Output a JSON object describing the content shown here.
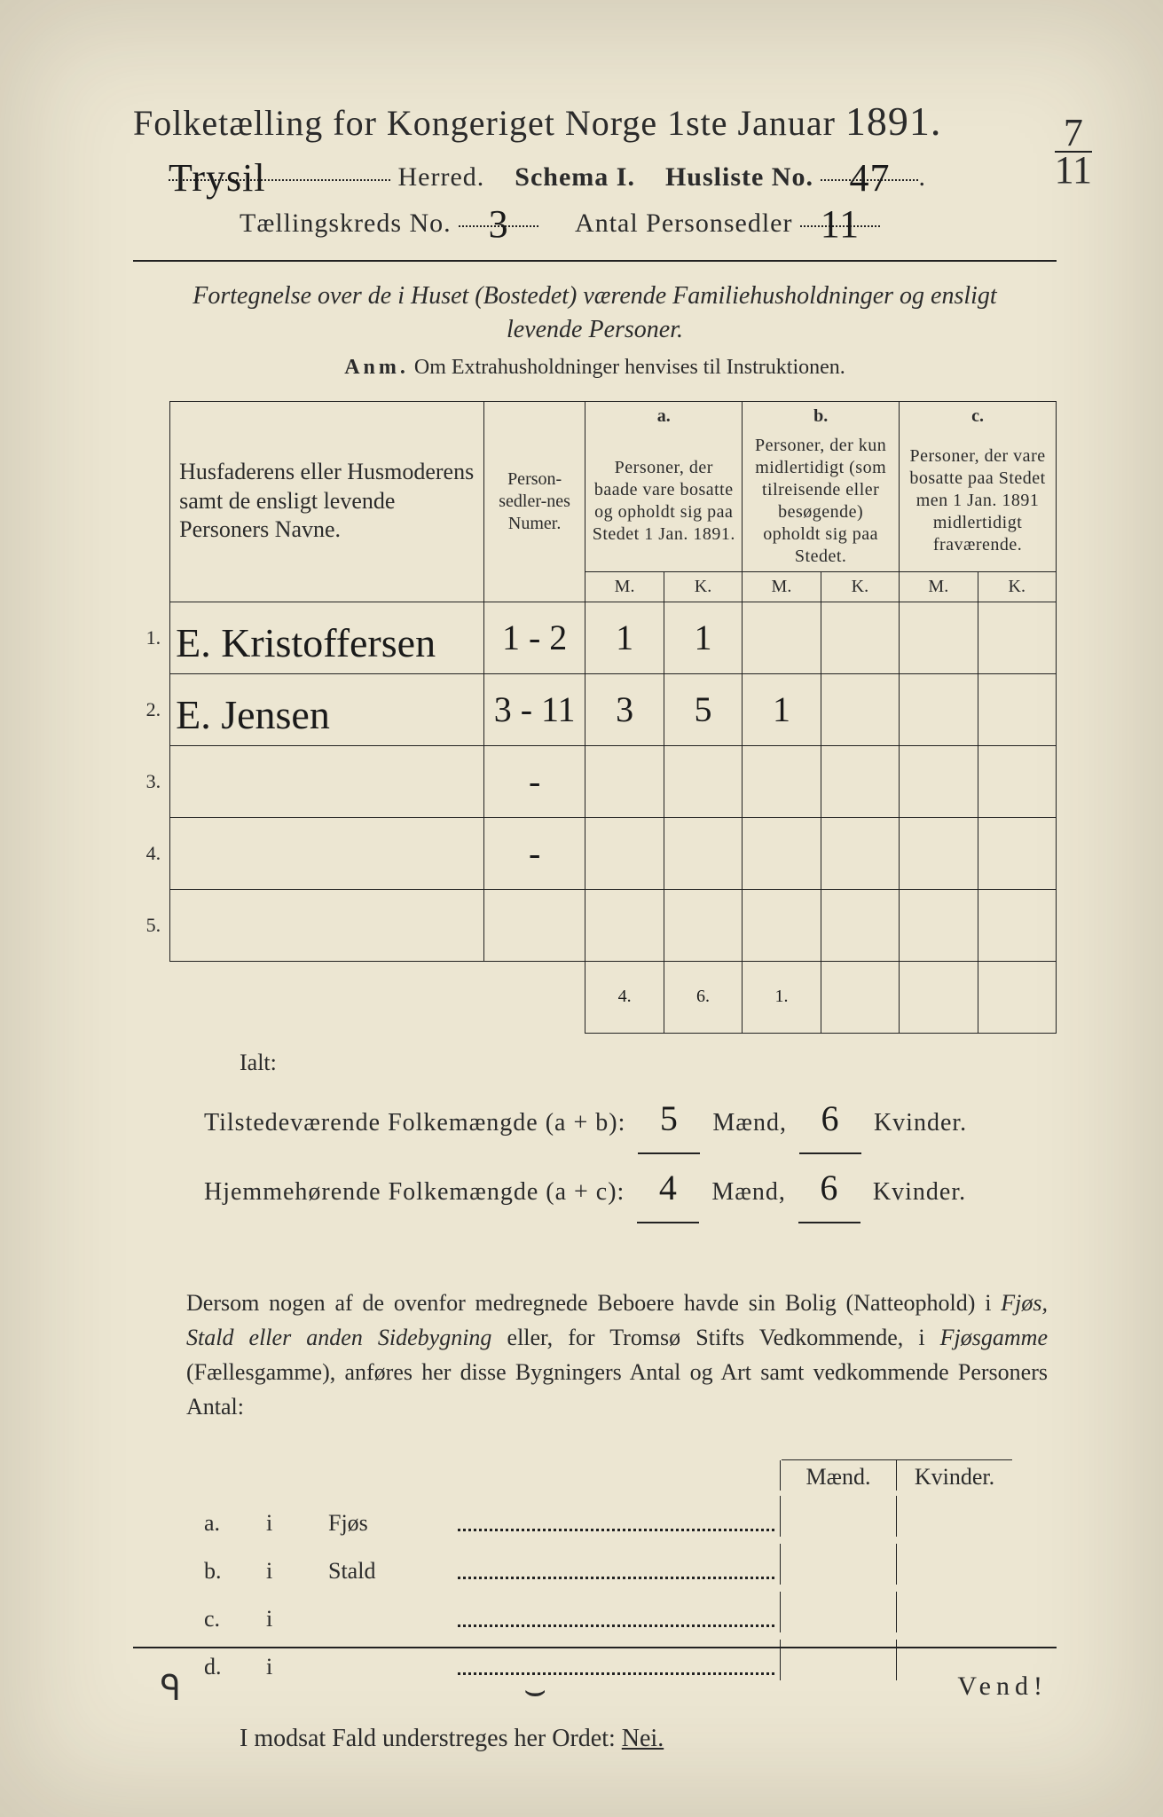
{
  "colors": {
    "paper": "#ece6d2",
    "ink": "#2b2b2b",
    "surround": "#5a5450"
  },
  "header": {
    "title_pre": "Folketælling for Kongeriget Norge 1ste Januar ",
    "year": "1891.",
    "corner_numer": "7",
    "corner_denom": "11",
    "herred_hand": "Trysil",
    "herred_label": " Herred.",
    "schema_label": "Schema I.",
    "husliste_label": "Husliste No.",
    "husliste_no": "47",
    "kreds_label": "Tællingskreds No.",
    "kreds_no": "3",
    "antal_label": "Antal Personsedler",
    "antal_no": "11"
  },
  "intro": {
    "text": "Fortegnelse over de i Huset (Bostedet) værende Familiehusholdninger og ensligt levende Personer.",
    "anm_label": "Anm.",
    "anm_text": " Om Extrahusholdninger henvises til Instruktionen."
  },
  "table": {
    "head_name": "Husfaderens eller Husmoderens samt de ensligt levende Personers Navne.",
    "head_numer": "Person-sedler-nes Numer.",
    "head_a_key": "a.",
    "head_a": "Personer, der baade vare bosatte og opholdt sig paa Stedet 1 Jan. 1891.",
    "head_b_key": "b.",
    "head_b": "Personer, der kun midlertidigt (som tilreisende eller besøgende) opholdt sig paa Stedet.",
    "head_c_key": "c.",
    "head_c": "Personer, der vare bosatte paa Stedet men 1 Jan. 1891 midlertidigt fraværende.",
    "mk_m": "M.",
    "mk_k": "K.",
    "rows": [
      {
        "n": "1.",
        "name": "E. Kristoffersen",
        "numer": "1 - 2",
        "a_m": "1",
        "a_k": "1",
        "b_m": "",
        "b_k": "",
        "c_m": "",
        "c_k": ""
      },
      {
        "n": "2.",
        "name": "E. Jensen",
        "numer": "3 - 11",
        "a_m": "3",
        "a_k": "5",
        "b_m": "1",
        "b_k": "",
        "c_m": "",
        "c_k": ""
      },
      {
        "n": "3.",
        "name": "",
        "numer": "-",
        "a_m": "",
        "a_k": "",
        "b_m": "",
        "b_k": "",
        "c_m": "",
        "c_k": ""
      },
      {
        "n": "4.",
        "name": "",
        "numer": "-",
        "a_m": "",
        "a_k": "",
        "b_m": "",
        "b_k": "",
        "c_m": "",
        "c_k": ""
      },
      {
        "n": "5.",
        "name": "",
        "numer": "",
        "a_m": "",
        "a_k": "",
        "b_m": "",
        "b_k": "",
        "c_m": "",
        "c_k": ""
      }
    ],
    "sums": {
      "a_m": "4.",
      "a_k": "6.",
      "b_m": "1."
    }
  },
  "totals": {
    "ialt": "Ialt:",
    "line1_label": "Tilstedeværende Folkemængde (a + b):",
    "line1_m": "5",
    "line1_k": "6",
    "line2_label": "Hjemmehørende Folkemængde (a + c):",
    "line2_m": "4",
    "line2_k": "6",
    "maend": " Mænd, ",
    "kvinder": " Kvinder."
  },
  "para": {
    "text1": "Dersom nogen af de ovenfor medregnede Beboere havde sin Bolig (Natteophold) i ",
    "it1": "Fjøs, Stald eller anden Sidebygning",
    "text2": " eller, for Tromsø Stifts Vedkommende, i ",
    "it2": "Fjøsgamme",
    "text3": " (Fællesgamme), anføres her disse Bygningers Antal og Art samt vedkommende Personers Antal:"
  },
  "mk": {
    "maend": "Mænd.",
    "kvinder": "Kvinder.",
    "rows": [
      {
        "k": "a.",
        "i": "i",
        "label": "Fjøs"
      },
      {
        "k": "b.",
        "i": "i",
        "label": "Stald"
      },
      {
        "k": "c.",
        "i": "i",
        "label": ""
      },
      {
        "k": "d.",
        "i": "i",
        "label": ""
      }
    ]
  },
  "nei": {
    "text": "I modsat Fald understreges her Ordet: ",
    "word": "Nei."
  },
  "vend": "Vend!"
}
